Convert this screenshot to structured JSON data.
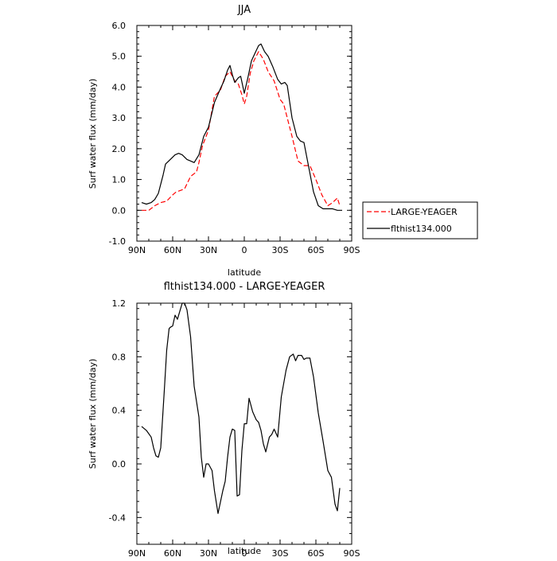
{
  "chart_data": [
    {
      "type": "line",
      "title": "JJA",
      "xlabel": "latitude",
      "ylabel": "Surf water flux (mm/day)",
      "xlim": [
        90,
        -90
      ],
      "ylim": [
        -1.0,
        6.0
      ],
      "xticks": [
        90,
        60,
        30,
        0,
        -30,
        -60,
        -90
      ],
      "xtick_labels": [
        "90N",
        "60N",
        "30N",
        "0",
        "30S",
        "60S",
        "90S"
      ],
      "yticks": [
        -1.0,
        0.0,
        1.0,
        2.0,
        3.0,
        4.0,
        5.0,
        6.0
      ],
      "ytick_labels": [
        "-1.0",
        "0.0",
        "1.0",
        "2.0",
        "3.0",
        "4.0",
        "5.0",
        "6.0"
      ],
      "grid": false,
      "legend": "right",
      "series": [
        {
          "name": "LARGE-YEAGER",
          "color": "#ff0000",
          "style": "dashed",
          "x": [
            86,
            80,
            75,
            70,
            65,
            60,
            57,
            53,
            50,
            45,
            40,
            38,
            35,
            30,
            25,
            20,
            16,
            12,
            8,
            5,
            2,
            0,
            -2,
            -5,
            -8,
            -12,
            -16,
            -20,
            -25,
            -30,
            -33,
            -36,
            -40,
            -45,
            -50,
            -55,
            -60,
            -65,
            -70,
            -74,
            -78,
            -80
          ],
          "values": [
            0.0,
            0.0,
            0.15,
            0.25,
            0.3,
            0.5,
            0.6,
            0.65,
            0.7,
            1.1,
            1.25,
            1.55,
            2.1,
            2.6,
            3.7,
            3.9,
            4.35,
            4.5,
            4.2,
            4.1,
            3.75,
            3.45,
            3.7,
            4.45,
            4.85,
            5.15,
            4.9,
            4.5,
            4.2,
            3.6,
            3.45,
            3.0,
            2.4,
            1.6,
            1.45,
            1.45,
            1.0,
            0.5,
            0.15,
            0.25,
            0.4,
            0.15
          ]
        },
        {
          "name": "flthist134.000",
          "color": "#000000",
          "style": "solid",
          "x": [
            86,
            82,
            78,
            75,
            72,
            68,
            66,
            62,
            58,
            55,
            52,
            48,
            45,
            42,
            38,
            34,
            30,
            25,
            20,
            17,
            14,
            12,
            10,
            8,
            5,
            3,
            0,
            -3,
            -6,
            -9,
            -12,
            -14,
            -17,
            -20,
            -24,
            -28,
            -31,
            -34,
            -36,
            -40,
            -44,
            -47,
            -50,
            -54,
            -58,
            -62,
            -66,
            -70,
            -74,
            -78,
            -80,
            -82
          ],
          "values": [
            0.25,
            0.2,
            0.25,
            0.35,
            0.55,
            1.15,
            1.5,
            1.65,
            1.8,
            1.85,
            1.8,
            1.65,
            1.6,
            1.55,
            1.8,
            2.4,
            2.7,
            3.5,
            3.95,
            4.2,
            4.55,
            4.7,
            4.4,
            4.15,
            4.3,
            4.35,
            3.8,
            4.3,
            4.85,
            5.1,
            5.35,
            5.4,
            5.15,
            5.0,
            4.65,
            4.25,
            4.1,
            4.15,
            4.05,
            3.0,
            2.4,
            2.25,
            2.2,
            1.4,
            0.6,
            0.15,
            0.05,
            0.05,
            0.05,
            0.0,
            0.0,
            0.0
          ]
        }
      ]
    },
    {
      "type": "line",
      "title": "flthist134.000 - LARGE-YEAGER",
      "xlabel": "latitude",
      "ylabel": "Surf water flux (mm/day)",
      "xlim": [
        90,
        -90
      ],
      "ylim": [
        -0.6,
        1.2
      ],
      "xticks": [
        90,
        60,
        30,
        0,
        -30,
        -60,
        -90
      ],
      "xtick_labels": [
        "90N",
        "60N",
        "30N",
        "0",
        "30S",
        "60S",
        "90S"
      ],
      "yticks": [
        -0.4,
        0.0,
        0.4,
        0.8,
        1.2
      ],
      "ytick_labels": [
        "-0.4",
        "0.0",
        "0.4",
        "0.8",
        "1.2"
      ],
      "grid": false,
      "series": [
        {
          "name": "",
          "color": "#000000",
          "style": "solid",
          "x": [
            86,
            82,
            78,
            76,
            74,
            72,
            70,
            67,
            65,
            63,
            62,
            60,
            58,
            56,
            54,
            52,
            50,
            48,
            45,
            42,
            38,
            36,
            34,
            32,
            30,
            27,
            25,
            22,
            18,
            16,
            14,
            12,
            10,
            8,
            6,
            4,
            2,
            0,
            -2,
            -4,
            -7,
            -10,
            -12,
            -14,
            -16,
            -18,
            -21,
            -23,
            -25,
            -28,
            -31,
            -35,
            -38,
            -41,
            -43,
            -45,
            -48,
            -50,
            -52,
            -55,
            -58,
            -62,
            -66,
            -70,
            -73,
            -76,
            -78,
            -80
          ],
          "values": [
            0.28,
            0.25,
            0.2,
            0.12,
            0.06,
            0.05,
            0.12,
            0.55,
            0.85,
            1.01,
            1.02,
            1.03,
            1.11,
            1.08,
            1.14,
            1.2,
            1.2,
            1.15,
            0.95,
            0.58,
            0.35,
            0.05,
            -0.1,
            0.0,
            0.0,
            -0.05,
            -0.2,
            -0.37,
            -0.2,
            -0.13,
            0.05,
            0.2,
            0.26,
            0.25,
            -0.24,
            -0.23,
            0.1,
            0.3,
            0.3,
            0.49,
            0.39,
            0.33,
            0.31,
            0.25,
            0.15,
            0.09,
            0.2,
            0.22,
            0.26,
            0.2,
            0.5,
            0.7,
            0.8,
            0.82,
            0.77,
            0.81,
            0.81,
            0.78,
            0.79,
            0.79,
            0.65,
            0.38,
            0.17,
            -0.05,
            -0.1,
            -0.3,
            -0.35,
            -0.18
          ]
        }
      ]
    }
  ]
}
